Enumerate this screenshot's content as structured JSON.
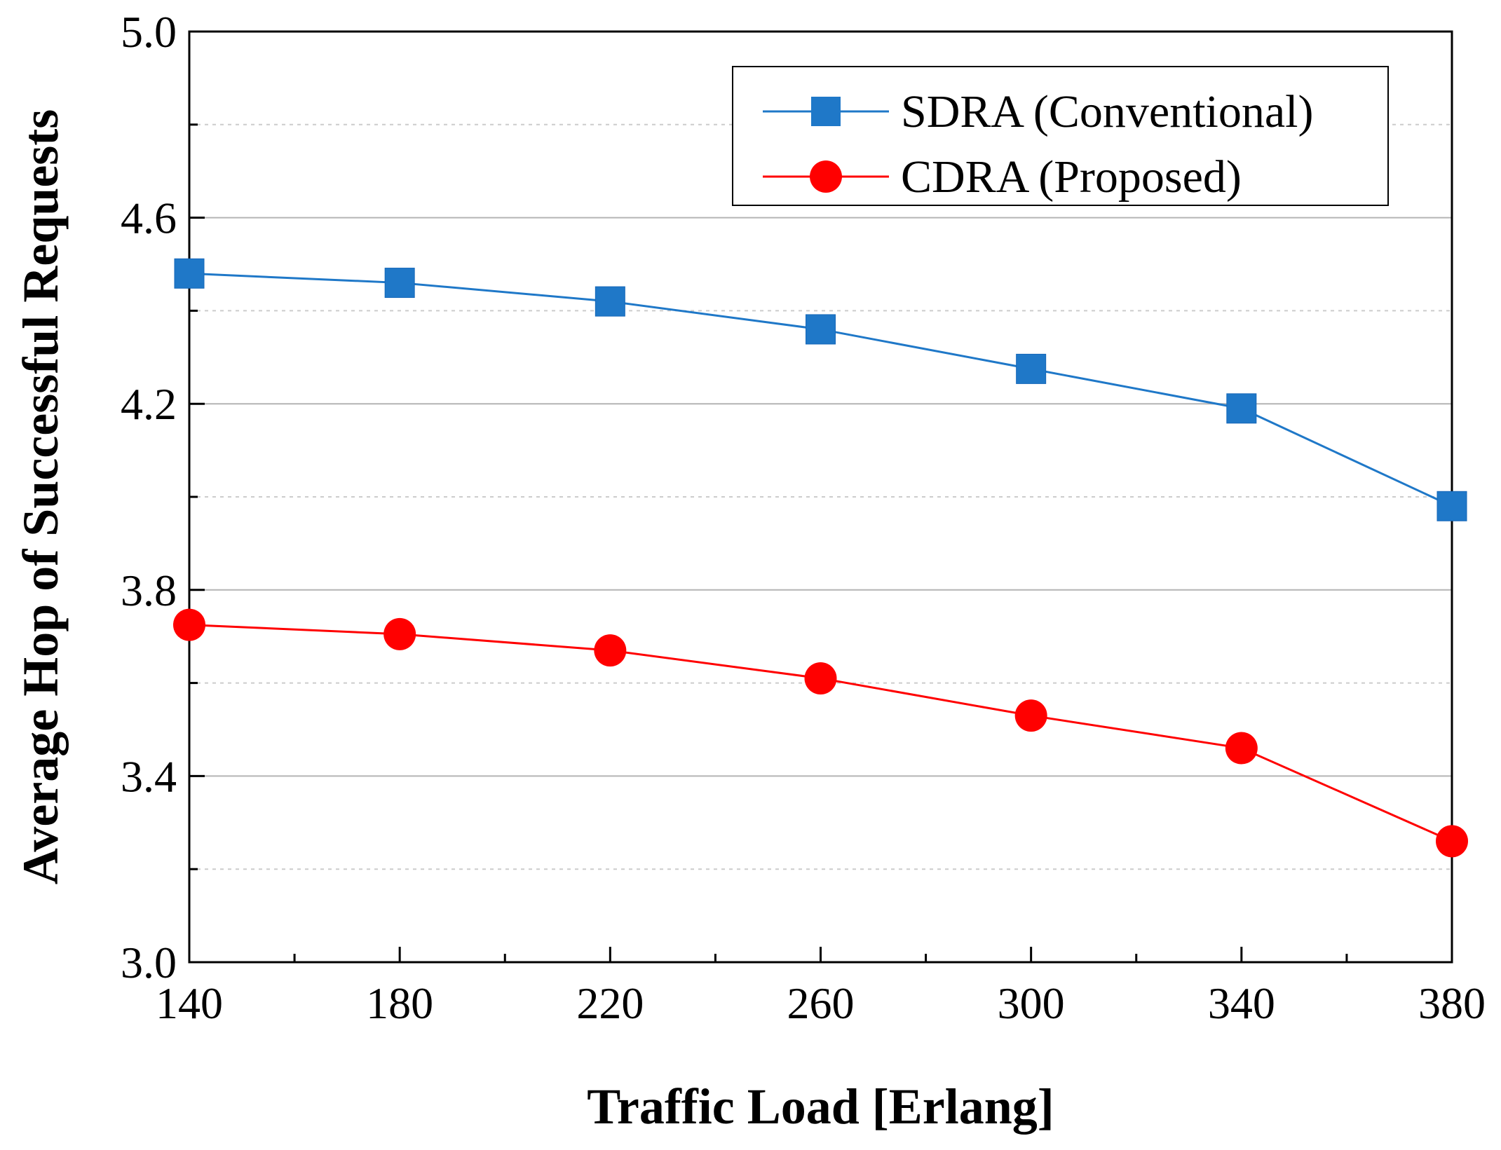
{
  "chart_data": {
    "type": "line",
    "title": "",
    "xlabel": "Traffic Load [Erlang]",
    "ylabel": "Average Hop of Successful Requests",
    "x": [
      140,
      180,
      220,
      260,
      300,
      340,
      380
    ],
    "xlim": [
      140,
      380
    ],
    "ylim": [
      3.0,
      5.0
    ],
    "x_major_ticks": [
      140,
      180,
      220,
      260,
      300,
      340,
      380
    ],
    "x_minor_ticks": [
      160,
      200,
      240,
      280,
      320,
      360
    ],
    "y_major_ticks": [
      3.0,
      3.4,
      3.8,
      4.2,
      4.6,
      5.0
    ],
    "y_minor_ticks": [
      3.2,
      3.6,
      4.0,
      4.4,
      4.8
    ],
    "x_tick_labels": [
      "140",
      "180",
      "220",
      "260",
      "300",
      "340",
      "380"
    ],
    "y_tick_labels": [
      "3.0",
      "3.4",
      "3.8",
      "4.2",
      "4.6",
      "5.0"
    ],
    "grid": true,
    "legend_position": "top-right",
    "series": [
      {
        "name": "SDRA (Conventional)",
        "marker": "square",
        "color": "#1f78c8",
        "values": [
          4.48,
          4.46,
          4.42,
          4.36,
          4.275,
          4.19,
          3.98
        ]
      },
      {
        "name": "CDRA (Proposed)",
        "marker": "circle",
        "color": "#ff0000",
        "values": [
          3.725,
          3.705,
          3.67,
          3.61,
          3.53,
          3.46,
          3.26
        ]
      }
    ]
  }
}
